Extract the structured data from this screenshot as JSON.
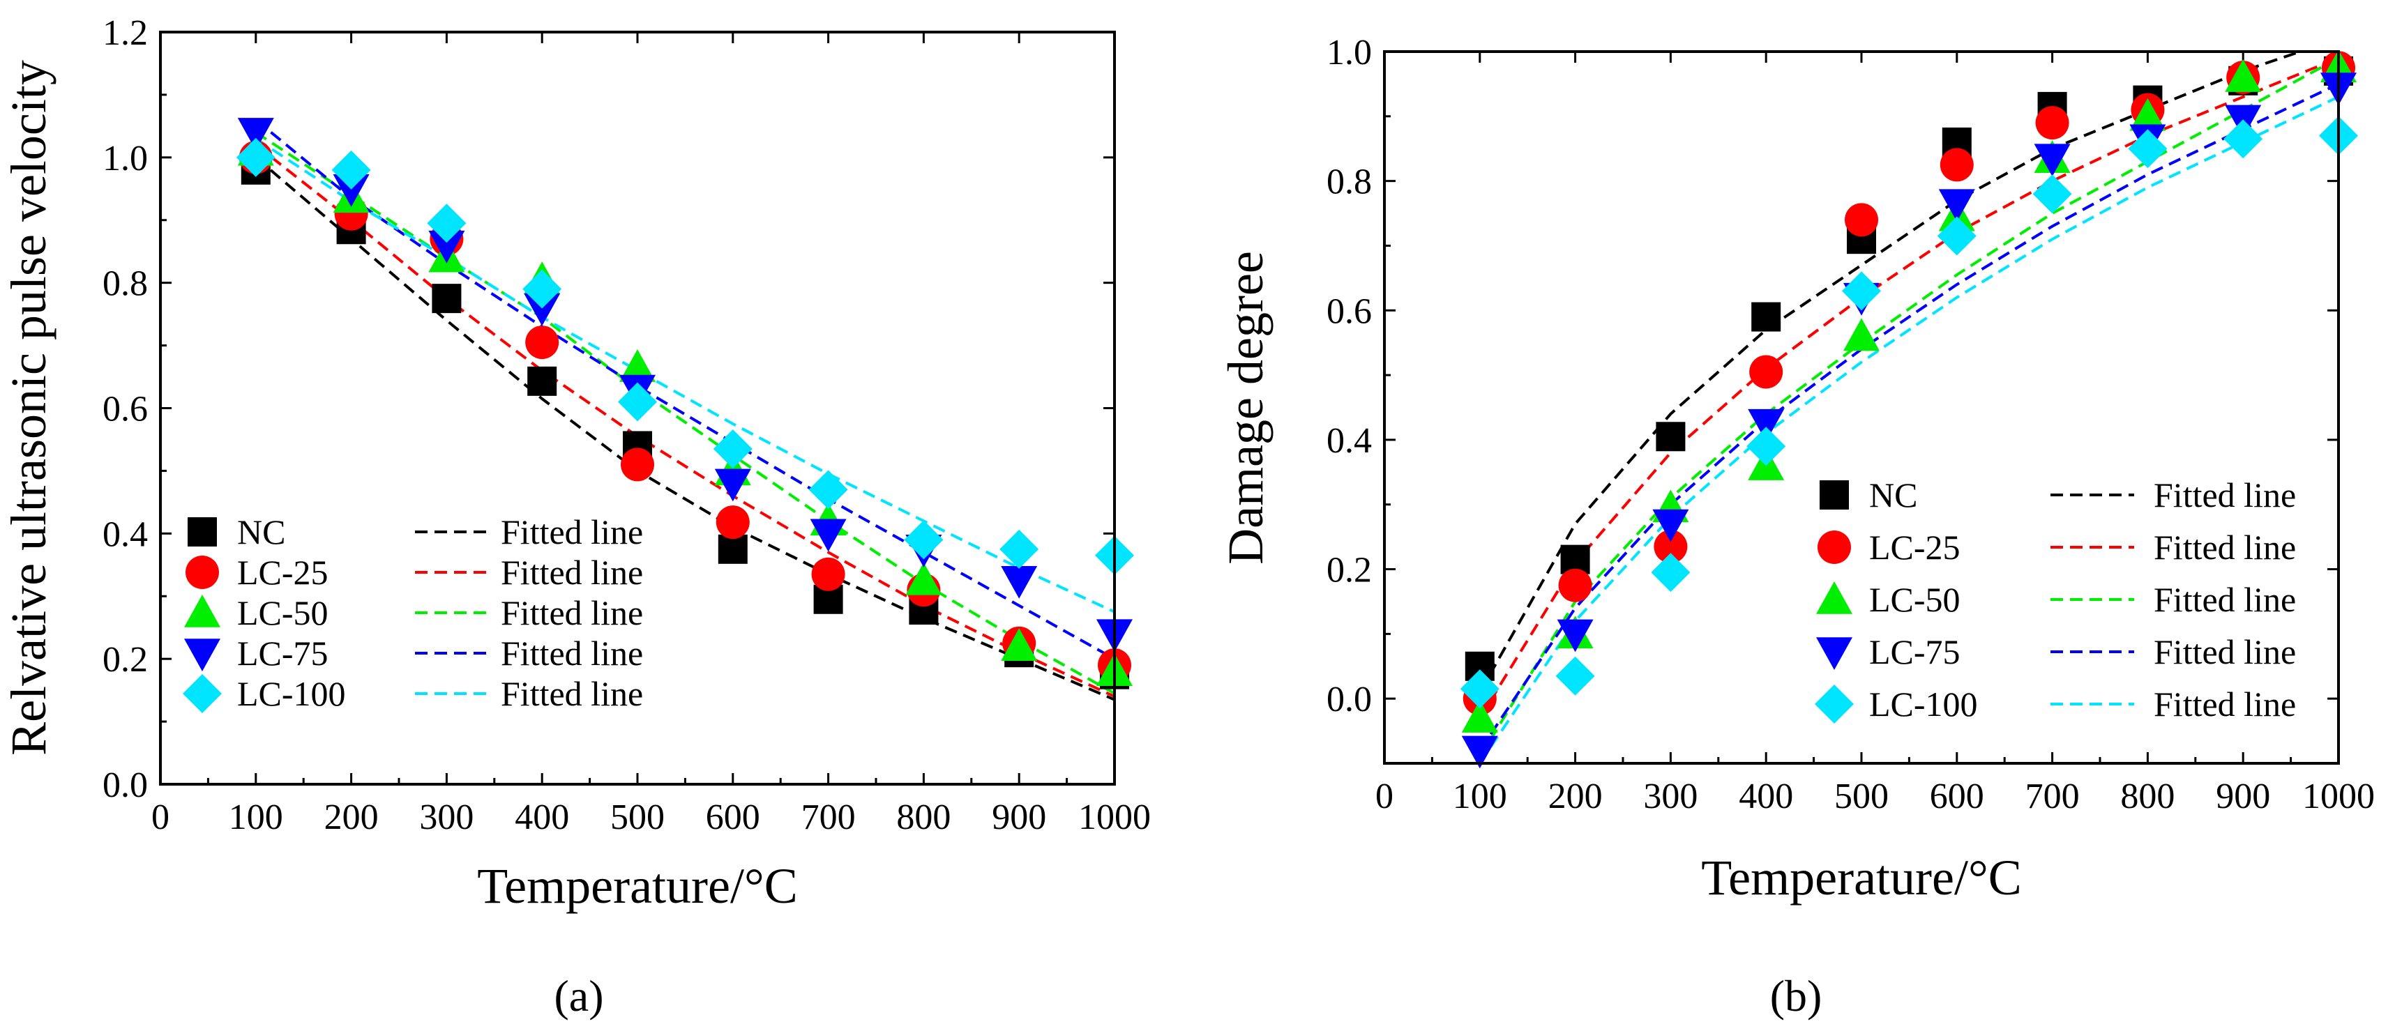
{
  "figure": {
    "panel_labels": [
      "(a)",
      "(b)"
    ]
  },
  "colors": {
    "NC": "#000000",
    "LC-25": "#ff0000",
    "LC-50": "#00ee00",
    "LC-75": "#0000ff",
    "LC-100": "#00e5ff"
  },
  "chart_data": [
    {
      "type": "scatter",
      "panel": "(a)",
      "title": "",
      "xlabel": "Temperature/°C",
      "ylabel": "Relvative ultrasonic pulse velocity",
      "xlim": [
        0,
        1000
      ],
      "ylim": [
        0,
        1.2
      ],
      "xticks": [
        0,
        100,
        200,
        300,
        400,
        500,
        600,
        700,
        800,
        900,
        1000
      ],
      "yticks": [
        0.0,
        0.2,
        0.4,
        0.6,
        0.8,
        1.0,
        1.2
      ],
      "ytick_labels": [
        "0.0",
        "0.2",
        "0.4",
        "0.6",
        "0.8",
        "1.0",
        "1.2"
      ],
      "legend_position": "bottom-left",
      "x": [
        100,
        200,
        300,
        400,
        500,
        600,
        700,
        800,
        900,
        1000
      ],
      "series": [
        {
          "name": "NC",
          "marker": "square",
          "values": [
            0.98,
            0.885,
            0.775,
            0.643,
            0.54,
            0.375,
            0.295,
            0.278,
            0.21,
            0.175
          ],
          "fit_label": "Fitted line",
          "fit": [
            1.0,
            0.87,
            0.74,
            0.615,
            0.5,
            0.41,
            0.335,
            0.265,
            0.2,
            0.135
          ]
        },
        {
          "name": "LC-25",
          "marker": "circle",
          "values": [
            1.0,
            0.91,
            0.87,
            0.705,
            0.51,
            0.418,
            0.335,
            0.31,
            0.225,
            0.19
          ],
          "fit_label": "Fitted line",
          "fit": [
            1.02,
            0.9,
            0.775,
            0.66,
            0.555,
            0.46,
            0.37,
            0.285,
            0.21,
            0.14
          ]
        },
        {
          "name": "LC-50",
          "marker": "triangle-up",
          "values": [
            1.01,
            0.935,
            0.84,
            0.805,
            0.665,
            0.5,
            0.42,
            0.325,
            0.22,
            0.18
          ],
          "fit_label": "Fitted line",
          "fit": [
            1.04,
            0.94,
            0.84,
            0.745,
            0.63,
            0.525,
            0.42,
            0.32,
            0.23,
            0.145
          ]
        },
        {
          "name": "LC-75",
          "marker": "triangle-down",
          "values": [
            1.04,
            0.95,
            0.86,
            0.76,
            0.63,
            0.48,
            0.4,
            0.375,
            0.325,
            0.24
          ],
          "fit_label": "Fitted line",
          "fit": [
            1.06,
            0.935,
            0.83,
            0.73,
            0.635,
            0.545,
            0.455,
            0.37,
            0.285,
            0.2
          ]
        },
        {
          "name": "LC-100",
          "marker": "diamond",
          "values": [
            1.0,
            0.98,
            0.895,
            0.79,
            0.61,
            0.535,
            0.47,
            0.39,
            0.375,
            0.365
          ],
          "fit_label": "Fitted line",
          "fit": [
            1.03,
            0.93,
            0.84,
            0.745,
            0.66,
            0.575,
            0.495,
            0.42,
            0.345,
            0.275
          ]
        }
      ]
    },
    {
      "type": "scatter",
      "panel": "(b)",
      "title": "",
      "xlabel": "Temperature/°C",
      "ylabel": "Damage degree",
      "xlim": [
        0,
        1000
      ],
      "ylim": [
        -0.1,
        1.0
      ],
      "xticks": [
        0,
        100,
        200,
        300,
        400,
        500,
        600,
        700,
        800,
        900,
        1000
      ],
      "yticks": [
        0.0,
        0.2,
        0.4,
        0.6,
        0.8,
        1.0
      ],
      "ytick_labels": [
        "0.0",
        "0.2",
        "0.4",
        "0.6",
        "0.8",
        "1.0"
      ],
      "legend_position": "center-right",
      "x": [
        100,
        200,
        300,
        400,
        500,
        600,
        700,
        800,
        900,
        1000
      ],
      "series": [
        {
          "name": "NC",
          "marker": "square",
          "values": [
            0.05,
            0.215,
            0.405,
            0.59,
            0.71,
            0.86,
            0.915,
            0.925,
            0.955,
            0.97
          ],
          "fit_label": "Fitted line",
          "fit": [
            0.01,
            0.27,
            0.44,
            0.57,
            0.67,
            0.77,
            0.85,
            0.91,
            0.97,
            1.02
          ]
        },
        {
          "name": "LC-25",
          "marker": "circle",
          "values": [
            0.0,
            0.175,
            0.235,
            0.505,
            0.74,
            0.825,
            0.89,
            0.91,
            0.96,
            0.975
          ],
          "fit_label": "Fitted line",
          "fit": [
            -0.03,
            0.21,
            0.38,
            0.51,
            0.62,
            0.72,
            0.8,
            0.87,
            0.93,
            0.99
          ]
        },
        {
          "name": "LC-50",
          "marker": "triangle-up",
          "values": [
            -0.03,
            0.1,
            0.295,
            0.36,
            0.56,
            0.745,
            0.835,
            0.9,
            0.96,
            0.975
          ],
          "fit_label": "Fitted line",
          "fit": [
            -0.09,
            0.15,
            0.31,
            0.44,
            0.55,
            0.655,
            0.75,
            0.83,
            0.91,
            0.99
          ]
        },
        {
          "name": "LC-75",
          "marker": "triangle-down",
          "values": [
            -0.08,
            0.1,
            0.27,
            0.425,
            0.62,
            0.765,
            0.835,
            0.865,
            0.895,
            0.945
          ],
          "fit_label": "Fitted line",
          "fit": [
            -0.08,
            0.14,
            0.3,
            0.43,
            0.54,
            0.64,
            0.73,
            0.81,
            0.88,
            0.95
          ]
        },
        {
          "name": "LC-100",
          "marker": "diamond",
          "values": [
            0.015,
            0.035,
            0.195,
            0.39,
            0.63,
            0.715,
            0.78,
            0.85,
            0.865,
            0.87
          ],
          "fit_label": "Fitted line",
          "fit": [
            -0.1,
            0.12,
            0.28,
            0.41,
            0.52,
            0.62,
            0.71,
            0.79,
            0.86,
            0.93
          ]
        }
      ]
    }
  ]
}
